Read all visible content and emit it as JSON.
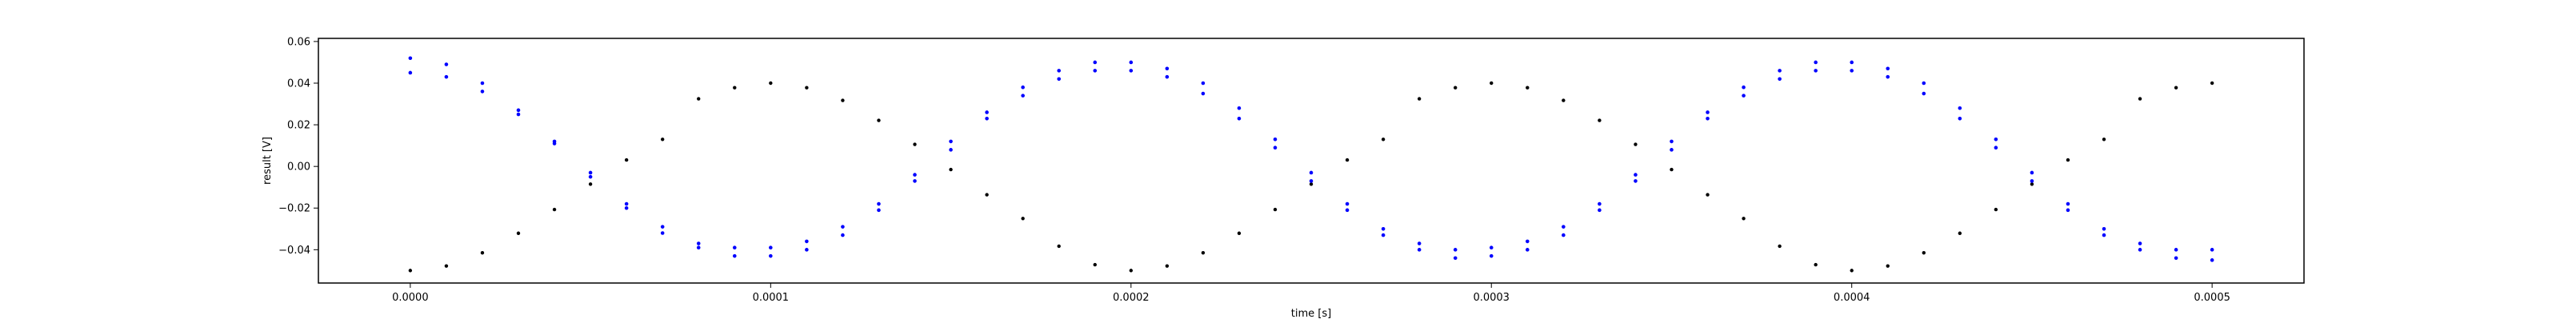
{
  "chart_data": {
    "type": "scatter",
    "title": "",
    "xlabel": "time [s]",
    "ylabel": "result [V]",
    "xlim": [
      -2.55e-05,
      0.0005255
    ],
    "ylim": [
      -0.056,
      0.0615
    ],
    "grid": false,
    "x_ticks": [
      {
        "value": 0.0,
        "label": "0.0000"
      },
      {
        "value": 0.0001,
        "label": "0.0001"
      },
      {
        "value": 0.0002,
        "label": "0.0002"
      },
      {
        "value": 0.0003,
        "label": "0.0003"
      },
      {
        "value": 0.0004,
        "label": "0.0004"
      },
      {
        "value": 0.0005,
        "label": "0.0005"
      }
    ],
    "y_ticks": [
      {
        "value": -0.04,
        "label": "−0.04"
      },
      {
        "value": -0.02,
        "label": "−0.02"
      },
      {
        "value": 0.0,
        "label": "0.00"
      },
      {
        "value": 0.02,
        "label": "0.02"
      },
      {
        "value": 0.04,
        "label": "0.04"
      },
      {
        "value": 0.06,
        "label": "0.06"
      }
    ],
    "series": [
      {
        "color": "#000000",
        "marker": "dot",
        "x": [
          0.0,
          1e-05,
          2e-05,
          3e-05,
          4e-05,
          5e-05,
          6e-05,
          7e-05,
          8e-05,
          9e-05,
          0.0001,
          0.00011,
          0.00012,
          0.00013,
          0.00014,
          0.00015,
          0.00016,
          0.00017,
          0.00018,
          0.00019,
          0.0002,
          0.00021,
          0.00022,
          0.00023,
          0.00024,
          0.00025,
          0.00026,
          0.00027,
          0.00028,
          0.00029,
          0.0003,
          0.00031,
          0.00032,
          0.00033,
          0.00034,
          0.00035,
          0.00036,
          0.00037,
          0.00038,
          0.00039,
          0.0004,
          0.00041,
          0.00042,
          0.00043,
          0.00044,
          0.00045,
          0.00046,
          0.00047,
          0.00048,
          0.00049,
          0.0005
        ],
        "y": [
          -0.05,
          -0.0478,
          -0.0415,
          -0.0321,
          -0.0207,
          -0.0085,
          0.0031,
          0.013,
          0.0325,
          0.0378,
          0.04,
          0.0378,
          0.0317,
          0.0221,
          0.0106,
          -0.0015,
          -0.0136,
          -0.025,
          -0.0383,
          -0.0472,
          -0.05,
          -0.0478,
          -0.0415,
          -0.0321,
          -0.0207,
          -0.0085,
          0.0031,
          0.013,
          0.0325,
          0.0378,
          0.04,
          0.0378,
          0.0317,
          0.0221,
          0.0106,
          -0.0015,
          -0.0136,
          -0.025,
          -0.0383,
          -0.0472,
          -0.05,
          -0.0478,
          -0.0415,
          -0.0321,
          -0.0207,
          -0.0085,
          0.0031,
          0.013,
          0.0325,
          0.0378,
          0.04
        ]
      },
      {
        "color": "#0000ff",
        "marker": "dot",
        "x": [
          0.0,
          1e-05,
          2e-05,
          3e-05,
          4e-05,
          5e-05,
          6e-05,
          7e-05,
          8e-05,
          9e-05,
          0.0001,
          0.00011,
          0.00012,
          0.00013,
          0.00014,
          0.00015,
          0.00016,
          0.00017,
          0.00018,
          0.00019,
          0.0002,
          0.00021,
          0.00022,
          0.00023,
          0.00024,
          0.00025,
          0.00026,
          0.00027,
          0.00028,
          0.00029,
          0.0003,
          0.00031,
          0.00032,
          0.00033,
          0.00034,
          0.00035,
          0.00036,
          0.00037,
          0.00038,
          0.00039,
          0.0004,
          0.00041,
          0.00042,
          0.00043,
          0.00044,
          0.00045,
          0.00046,
          0.00047,
          0.00048,
          0.00049,
          0.0005
        ],
        "y": [
          0.052,
          0.049,
          0.04,
          0.027,
          0.012,
          -0.003,
          -0.018,
          -0.029,
          -0.037,
          -0.039,
          -0.039,
          -0.036,
          -0.029,
          -0.018,
          -0.004,
          0.012,
          0.026,
          0.038,
          0.046,
          0.05,
          0.05,
          0.047,
          0.04,
          0.028,
          0.013,
          -0.003,
          -0.018,
          -0.03,
          -0.037,
          -0.04,
          -0.039,
          -0.036,
          -0.029,
          -0.018,
          -0.004,
          0.012,
          0.026,
          0.038,
          0.046,
          0.05,
          0.05,
          0.047,
          0.04,
          0.028,
          0.013,
          -0.003,
          -0.018,
          -0.03,
          -0.037,
          -0.04,
          -0.04
        ]
      },
      {
        "color": "#0000ff",
        "marker": "dot",
        "x": [
          0.0,
          1e-05,
          2e-05,
          3e-05,
          4e-05,
          5e-05,
          6e-05,
          7e-05,
          8e-05,
          9e-05,
          0.0001,
          0.00011,
          0.00012,
          0.00013,
          0.00014,
          0.00015,
          0.00016,
          0.00017,
          0.00018,
          0.00019,
          0.0002,
          0.00021,
          0.00022,
          0.00023,
          0.00024,
          0.00025,
          0.00026,
          0.00027,
          0.00028,
          0.00029,
          0.0003,
          0.00031,
          0.00032,
          0.00033,
          0.00034,
          0.00035,
          0.00036,
          0.00037,
          0.00038,
          0.00039,
          0.0004,
          0.00041,
          0.00042,
          0.00043,
          0.00044,
          0.00045,
          0.00046,
          0.00047,
          0.00048,
          0.00049,
          0.0005
        ],
        "y": [
          0.045,
          0.043,
          0.036,
          0.025,
          0.011,
          -0.005,
          -0.02,
          -0.032,
          -0.039,
          -0.043,
          -0.043,
          -0.04,
          -0.033,
          -0.021,
          -0.007,
          0.008,
          0.023,
          0.034,
          0.042,
          0.046,
          0.046,
          0.043,
          0.035,
          0.023,
          0.009,
          -0.007,
          -0.021,
          -0.033,
          -0.04,
          -0.044,
          -0.043,
          -0.04,
          -0.033,
          -0.021,
          -0.007,
          0.008,
          0.023,
          0.034,
          0.042,
          0.046,
          0.046,
          0.043,
          0.035,
          0.023,
          0.009,
          -0.007,
          -0.021,
          -0.033,
          -0.04,
          -0.044,
          -0.045
        ]
      }
    ]
  }
}
